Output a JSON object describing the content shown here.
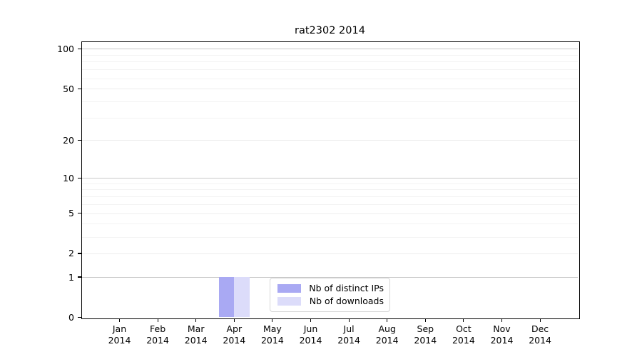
{
  "figure": {
    "title": "rat2302 2014"
  },
  "chart_data": {
    "type": "bar",
    "title": "rat2302 2014",
    "x_tick_labels_line1": [
      "Jan",
      "Feb",
      "Mar",
      "Apr",
      "May",
      "Jun",
      "Jul",
      "Aug",
      "Sep",
      "Oct",
      "Nov",
      "Dec"
    ],
    "x_tick_labels_line2": "2014",
    "series": [
      {
        "name": "Nb of distinct IPs",
        "color": "#a9a9f3",
        "values": [
          0,
          0,
          0,
          1,
          0,
          0,
          0,
          0,
          0,
          0,
          0,
          0
        ]
      },
      {
        "name": "Nb of downloads",
        "color": "#dcdcfa",
        "values": [
          0,
          0,
          0,
          1,
          0,
          0,
          0,
          0,
          0,
          0,
          0,
          0
        ]
      }
    ],
    "yscale": "log10(1+x)",
    "ylim": [
      0,
      115
    ],
    "y_major_ticks": [
      0,
      1,
      2,
      5,
      10,
      20,
      50,
      100
    ],
    "y_minor_gridlines": [
      3,
      4,
      6,
      7,
      8,
      9,
      30,
      40,
      60,
      70,
      80,
      90
    ],
    "grid": "horizontal",
    "legend": {
      "position": "bottom-center",
      "entries": [
        "Nb of distinct IPs",
        "Nb of downloads"
      ]
    },
    "colors": {
      "bar_distinct_ips": "#a9a9f3",
      "bar_downloads": "#dcdcfa",
      "gridline_minor": "#f3f3f3",
      "gridline_major": "#ededed",
      "gridline_decade": "#c8c8c8",
      "axis": "#000000",
      "legend_border": "#d6d6d6",
      "text": "#000000"
    }
  }
}
